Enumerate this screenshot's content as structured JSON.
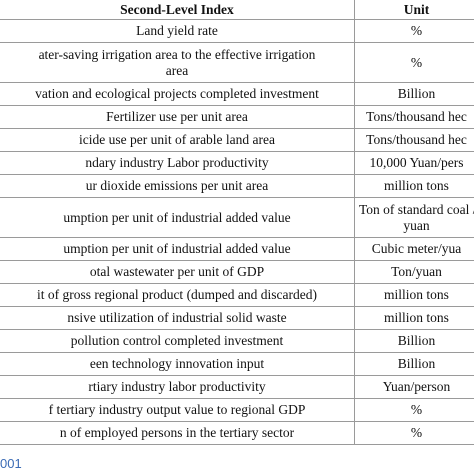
{
  "table": {
    "header": [
      "Second-Level Index",
      "Unit"
    ],
    "rows": [
      [
        [
          "Land yield rate"
        ],
        [
          "%"
        ]
      ],
      [
        [
          "ater-saving irrigation area to the effective irrigation",
          "area"
        ],
        [
          "%"
        ]
      ],
      [
        [
          "vation and ecological projects completed investment"
        ],
        [
          "Billion"
        ]
      ],
      [
        [
          "Fertilizer use per unit area"
        ],
        [
          "Tons/thousand hec"
        ]
      ],
      [
        [
          "icide use per unit of arable land area"
        ],
        [
          "Tons/thousand hec"
        ]
      ],
      [
        [
          "ndary industry Labor productivity"
        ],
        [
          "10,000 Yuan/pers"
        ]
      ],
      [
        [
          "ur dioxide emissions per unit area"
        ],
        [
          "million tons"
        ]
      ],
      [
        [
          "umption per unit of industrial added value"
        ],
        [
          "Ton of standard coal /",
          "yuan"
        ]
      ],
      [
        [
          "umption per unit of industrial added value"
        ],
        [
          "Cubic meter/yua"
        ]
      ],
      [
        [
          "otal wastewater per unit of GDP"
        ],
        [
          "Ton/yuan"
        ]
      ],
      [
        [
          "it of gross regional product (dumped and discarded)"
        ],
        [
          "million tons"
        ]
      ],
      [
        [
          "nsive utilization of industrial solid waste"
        ],
        [
          "million tons"
        ]
      ],
      [
        [
          "pollution control completed investment"
        ],
        [
          "Billion"
        ]
      ],
      [
        [
          "een technology innovation input"
        ],
        [
          "Billion"
        ]
      ],
      [
        [
          "rtiary industry labor productivity"
        ],
        [
          "Yuan/person"
        ]
      ],
      [
        [
          "f tertiary industry output value to regional GDP"
        ],
        [
          "%"
        ]
      ],
      [
        [
          "n of employed persons in the tertiary sector"
        ],
        [
          "%"
        ]
      ]
    ]
  },
  "footer": {
    "doi": "001"
  }
}
